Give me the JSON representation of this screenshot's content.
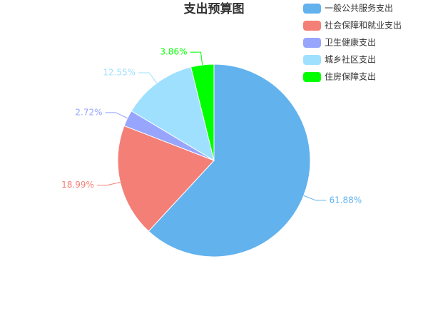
{
  "chart_data": {
    "type": "pie",
    "title": "支出预算图",
    "categories": [
      "一般公共服务支出",
      "社会保障和就业支出",
      "卫生健康支出",
      "城乡社区支出",
      "住房保障支出"
    ],
    "values": [
      61.88,
      18.99,
      2.72,
      12.55,
      3.86
    ],
    "value_labels": [
      "61.88%",
      "18.99%",
      "2.72%",
      "12.55%",
      "3.86%"
    ],
    "colors": [
      "#62b2ee",
      "#f47f77",
      "#97a5fc",
      "#9fe0ff",
      "#00ff00"
    ]
  }
}
